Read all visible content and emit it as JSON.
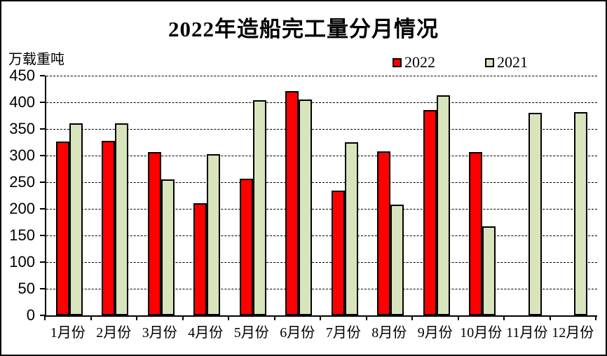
{
  "title": "2022年造船完工量分月情况",
  "unit_label": "万载重吨",
  "legend": {
    "items": [
      {
        "label": "2022",
        "color": "#ff0000"
      },
      {
        "label": "2021",
        "color": "#d8e4bc"
      }
    ]
  },
  "chart_data": {
    "type": "bar",
    "title": "2022年造船完工量分月情况",
    "xlabel": "",
    "ylabel": "万载重吨",
    "categories": [
      "1月份",
      "2月份",
      "3月份",
      "4月份",
      "5月份",
      "6月份",
      "7月份",
      "8月份",
      "9月份",
      "10月份",
      "11月份",
      "12月份"
    ],
    "series": [
      {
        "name": "2022",
        "color": "#ff0000",
        "values": [
          326,
          327,
          307,
          210,
          256,
          421,
          234,
          308,
          385,
          307,
          null,
          null
        ]
      },
      {
        "name": "2021",
        "color": "#d8e4bc",
        "values": [
          361,
          361,
          255,
          302,
          404,
          405,
          325,
          208,
          413,
          167,
          380,
          381
        ]
      }
    ],
    "ylim": [
      0,
      450
    ],
    "ytick_interval": 50,
    "grid": "horizontal-dashed",
    "legend_position": "top-right",
    "bar_border_color": "#000000"
  }
}
